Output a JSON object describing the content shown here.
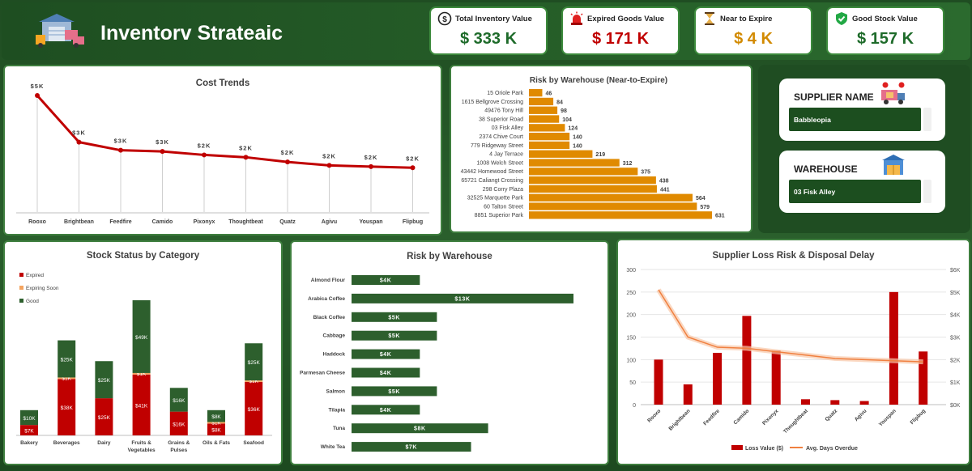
{
  "header": {
    "title": "Inventorv Strateaic"
  },
  "kpis": [
    {
      "label": "Total Inventory Value",
      "value": "$ 333 K",
      "color": "#1e6b2a",
      "icon": "dollar-coin-icon"
    },
    {
      "label": "Expired Goods Value",
      "value": "$ 171 K",
      "color": "#c00000",
      "icon": "alarm-siren-icon"
    },
    {
      "label": "Near to Expire",
      "value": "$ 4 K",
      "color": "#d28a00",
      "icon": "hourglass-icon"
    },
    {
      "label": "Good Stock Value",
      "value": "$ 157 K",
      "color": "#1e6b2a",
      "icon": "shield-check-icon"
    }
  ],
  "slicers": {
    "supplier": {
      "label": "SUPPLIER NAME",
      "value": "Babbleopia"
    },
    "warehouse": {
      "label": "WAREHOUSE",
      "value": "03 Fisk Alley"
    }
  },
  "cost_trends": {
    "title": "Cost Trends",
    "categories": [
      "Rooxo",
      "Brightbean",
      "Feedfire",
      "Camido",
      "Pixonyx",
      "Thoughtbeat",
      "Quatz",
      "Agivu",
      "Youspan",
      "Flipbug"
    ],
    "labels": [
      "$5K",
      "$3K",
      "$3K",
      "$3K",
      "$2K",
      "$2K",
      "$2K",
      "$2K",
      "$2K",
      "$2K"
    ],
    "values": [
      5.0,
      3.0,
      2.65,
      2.6,
      2.45,
      2.35,
      2.15,
      2.0,
      1.95,
      1.9
    ],
    "color": "#c00000"
  },
  "risk_near": {
    "title": "Risk by Warehouse (Near-to-Expire)",
    "categories": [
      "15 Oriole Park",
      "1615 Bellgrove Crossing",
      "49476 Tony Hill",
      "38 Superior Road",
      "03 Fisk Alley",
      "2374 Chive Court",
      "779 Ridgeway Street",
      "4 Jay Terrace",
      "1008 Welch Street",
      "43442 Homewood Street",
      "65721 Caliangt Crossing",
      "298 Corry Plaza",
      "32525 Marquette Park",
      "60 Talton Street",
      "8851 Superior Park"
    ],
    "values": [
      46,
      84,
      98,
      104,
      124,
      140,
      140,
      219,
      312,
      375,
      438,
      441,
      564,
      579,
      631
    ],
    "color": "#e08a00"
  },
  "stock_status": {
    "title": "Stock Status by Category",
    "legend": [
      "Expired",
      "Expiring Soon",
      "Good"
    ],
    "categories": [
      "Bakery",
      "Beverages",
      "Dairy",
      "Fruits & Vegetables",
      "Grains & Pulses",
      "Oils & Fats",
      "Seafood"
    ],
    "series": [
      {
        "name": "Expired",
        "values": [
          7,
          38,
          25,
          41,
          16,
          8,
          36
        ],
        "labels": [
          "$7K",
          "$38K",
          "$25K",
          "$41K",
          "$16K",
          "$8K",
          "$36K"
        ],
        "color": "#c00000"
      },
      {
        "name": "Expiring Soon",
        "values": [
          0,
          1,
          0,
          1,
          0,
          1,
          1
        ],
        "labels": [
          "",
          "$1K",
          "",
          "$1K",
          "",
          "$1K",
          "$1K"
        ],
        "color": "#f4a460"
      },
      {
        "name": "Good",
        "values": [
          10,
          25,
          25,
          49,
          16,
          8,
          25
        ],
        "labels": [
          "$10K",
          "$25K",
          "$25K",
          "$49K",
          "$16K",
          "$8K",
          "$25K"
        ],
        "color": "#2d5f2d"
      }
    ]
  },
  "risk_warehouse": {
    "title": "Risk by Warehouse",
    "categories": [
      "Almond Flour",
      "Arabica Coffee",
      "Black Coffee",
      "Cabbage",
      "Haddock",
      "Parmesan Cheese",
      "Salmon",
      "Tilapia",
      "Tuna",
      "White Tea"
    ],
    "values": [
      4,
      13,
      5,
      5,
      4,
      4,
      5,
      4,
      8,
      7
    ],
    "labels": [
      "$4K",
      "$13K",
      "$5K",
      "$5K",
      "$4K",
      "$4K",
      "$5K",
      "$4K",
      "$8K",
      "$7K"
    ],
    "color": "#2d5f2d"
  },
  "supplier_loss": {
    "title": "Supplier Loss Risk & Disposal Delay",
    "categories": [
      "Rooxo",
      "Brightbean",
      "Feedfire",
      "Camido",
      "Pixonyx",
      "Thoughtbeat",
      "Quatz",
      "Agivu",
      "Youspan",
      "Flipbug"
    ],
    "y_ticks": [
      "0",
      "50",
      "100",
      "150",
      "200",
      "250",
      "300"
    ],
    "y2_ticks": [
      "$0K",
      "$1K",
      "$2K",
      "$3K",
      "$4K",
      "$5K",
      "$6K"
    ],
    "bars": {
      "name": "Loss Value ($)",
      "values": [
        100,
        45,
        115,
        197,
        120,
        12,
        10,
        8,
        250,
        118
      ],
      "color": "#c00000"
    },
    "line": {
      "name": "Avg. Days Overdue",
      "values": [
        5.1,
        3.0,
        2.55,
        2.5,
        2.35,
        2.2,
        2.05,
        2.0,
        1.95,
        1.9
      ],
      "color": "#f08040"
    }
  }
}
